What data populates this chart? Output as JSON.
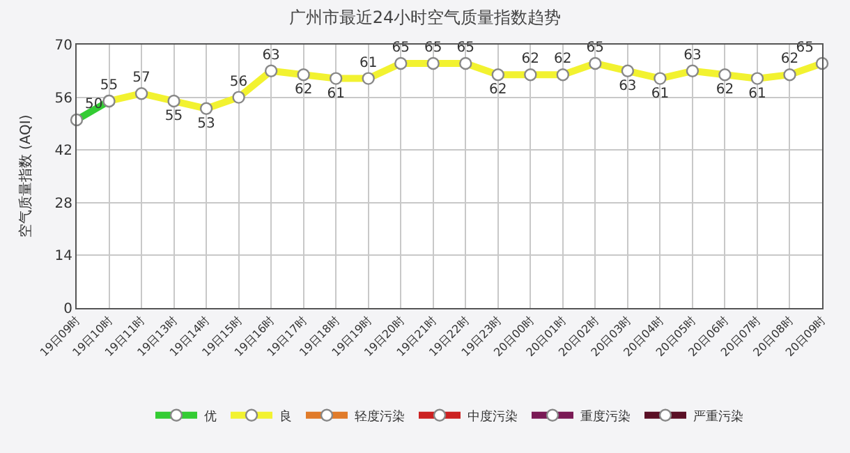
{
  "chart_data": {
    "type": "line",
    "title": "广州市最近24小时空气质量指数趋势",
    "ylabel": "空气质量指数 (AQI)",
    "categories": [
      "19日09时",
      "19日10时",
      "19日11时",
      "19日13时",
      "19日14时",
      "19日15时",
      "19日16时",
      "19日17时",
      "19日18时",
      "19日19时",
      "19日20时",
      "19日21时",
      "19日22时",
      "19日23时",
      "20日00时",
      "20日01时",
      "20日02时",
      "20日03时",
      "20日04时",
      "20日05时",
      "20日06时",
      "20日07时",
      "20日08时",
      "20日09时"
    ],
    "series": [
      {
        "name": "优",
        "color": "#33cc33",
        "values": [
          50,
          55,
          null,
          null,
          null,
          null,
          null,
          null,
          null,
          null,
          null,
          null,
          null,
          null,
          null,
          null,
          null,
          null,
          null,
          null,
          null,
          null,
          null,
          null
        ],
        "value_labels": [
          "50",
          null,
          null,
          null,
          null,
          null,
          null,
          null,
          null,
          null,
          null,
          null,
          null,
          null,
          null,
          null,
          null,
          null,
          null,
          null,
          null,
          null,
          null,
          null
        ]
      },
      {
        "name": "良",
        "color": "#f2f230",
        "values": [
          null,
          55,
          57,
          55,
          53,
          56,
          63,
          62,
          61,
          61,
          65,
          65,
          65,
          62,
          62,
          62,
          65,
          63,
          61,
          63,
          62,
          61,
          62,
          65
        ],
        "value_labels": [
          null,
          "55",
          "57",
          "55",
          "53",
          "56",
          "63",
          "62",
          "61",
          "61",
          "65",
          "65",
          "65",
          "62",
          "62",
          "62",
          "65",
          "63",
          "61",
          "63",
          "62",
          "61",
          "62",
          "65"
        ]
      },
      {
        "name": "轻度污染",
        "color": "#e07b2a",
        "values": [
          null,
          null,
          null,
          null,
          null,
          null,
          null,
          null,
          null,
          null,
          null,
          null,
          null,
          null,
          null,
          null,
          null,
          null,
          null,
          null,
          null,
          null,
          null,
          null
        ]
      },
      {
        "name": "中度污染",
        "color": "#cc2222",
        "values": [
          null,
          null,
          null,
          null,
          null,
          null,
          null,
          null,
          null,
          null,
          null,
          null,
          null,
          null,
          null,
          null,
          null,
          null,
          null,
          null,
          null,
          null,
          null,
          null
        ]
      },
      {
        "name": "重度污染",
        "color": "#7a1a55",
        "values": [
          null,
          null,
          null,
          null,
          null,
          null,
          null,
          null,
          null,
          null,
          null,
          null,
          null,
          null,
          null,
          null,
          null,
          null,
          null,
          null,
          null,
          null,
          null,
          null
        ]
      },
      {
        "name": "严重污染",
        "color": "#5a0f25",
        "values": [
          null,
          null,
          null,
          null,
          null,
          null,
          null,
          null,
          null,
          null,
          null,
          null,
          null,
          null,
          null,
          null,
          null,
          null,
          null,
          null,
          null,
          null,
          null,
          null
        ]
      }
    ],
    "ylim": [
      0,
      70
    ],
    "yticks": [
      0,
      14,
      28,
      42,
      56,
      70
    ],
    "grid": true,
    "legend": "bottom",
    "marker": "circle",
    "line_style": "solid"
  }
}
